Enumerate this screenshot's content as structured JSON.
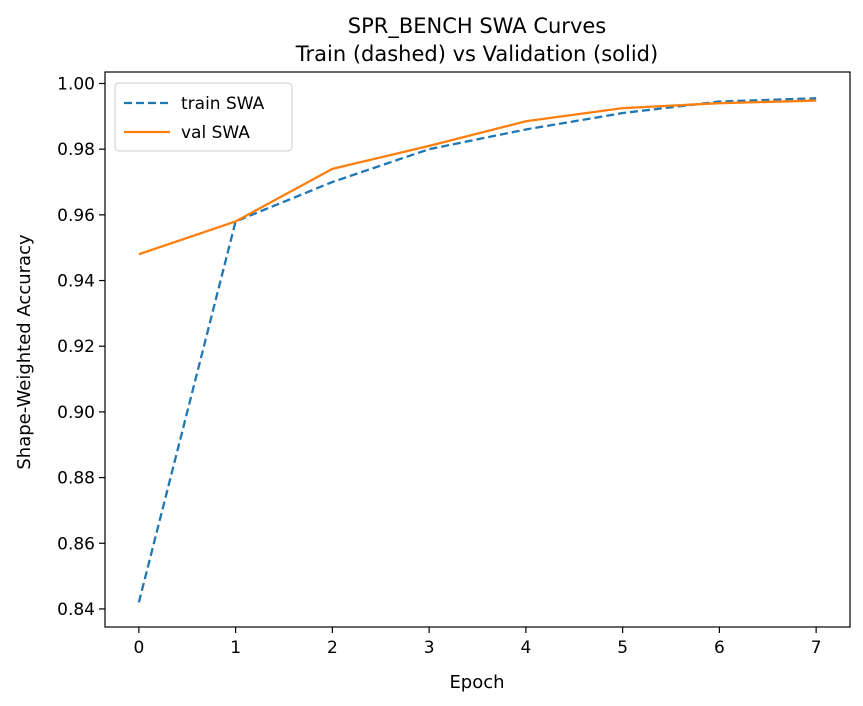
{
  "chart_data": {
    "type": "line",
    "title": "SPR_BENCH SWA Curves",
    "subtitle": "Train (dashed) vs Validation (solid)",
    "xlabel": "Epoch",
    "ylabel": "Shape-Weighted Accuracy",
    "xlim": [
      -0.35,
      7.35
    ],
    "ylim": [
      0.8345,
      1.0035
    ],
    "x_ticks": [
      0,
      1,
      2,
      3,
      4,
      5,
      6,
      7
    ],
    "x_tick_labels": [
      "0",
      "1",
      "2",
      "3",
      "4",
      "5",
      "6",
      "7"
    ],
    "y_ticks": [
      0.84,
      0.86,
      0.88,
      0.9,
      0.92,
      0.94,
      0.96,
      0.98,
      1.0
    ],
    "y_tick_labels": [
      "0.84",
      "0.86",
      "0.88",
      "0.90",
      "0.92",
      "0.94",
      "0.96",
      "0.98",
      "1.00"
    ],
    "grid": false,
    "legend_position": "top-left",
    "x": [
      0,
      1,
      2,
      3,
      4,
      5,
      6,
      7
    ],
    "series": [
      {
        "name": "train SWA",
        "style": "dashed",
        "color": "#1f77b4",
        "values": [
          0.842,
          0.958,
          0.97,
          0.98,
          0.986,
          0.991,
          0.9945,
          0.9955
        ]
      },
      {
        "name": "val SWA",
        "style": "solid",
        "color": "#ff7f0e",
        "values": [
          0.948,
          0.958,
          0.974,
          0.981,
          0.9885,
          0.9925,
          0.994,
          0.9948
        ]
      }
    ]
  }
}
